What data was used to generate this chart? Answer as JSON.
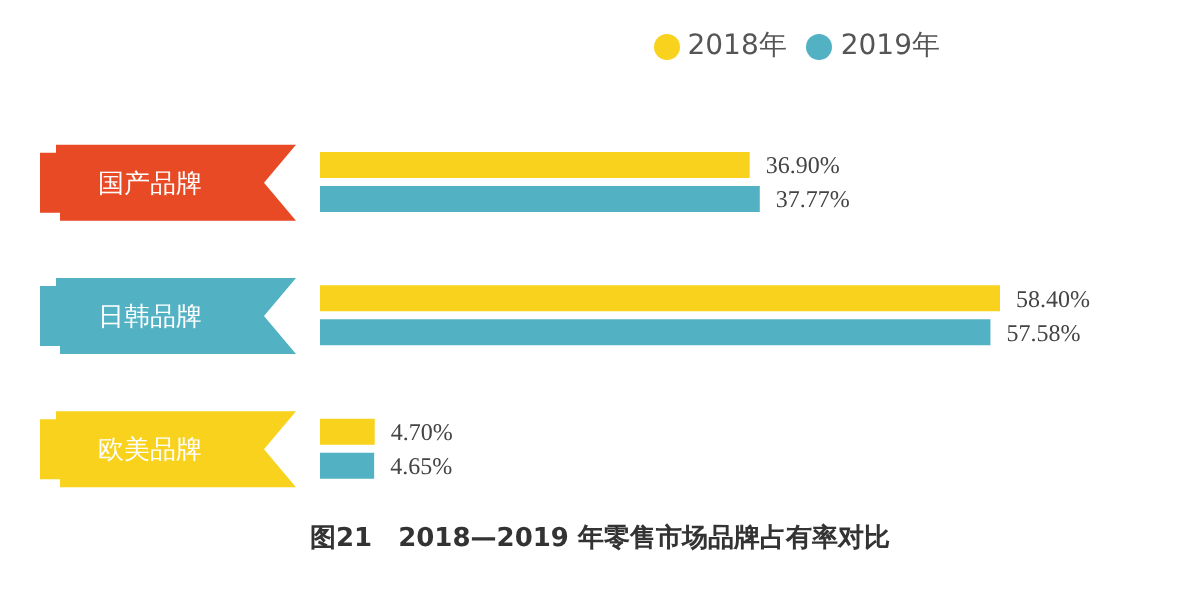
{
  "chart_data": {
    "type": "bar",
    "orientation": "horizontal",
    "title": "图21　2018—2019 年零售市场品牌占有率对比",
    "categories": [
      "国产品牌",
      "日韩品牌",
      "欧美品牌"
    ],
    "series": [
      {
        "name": "2018年",
        "color": "#f8d21c",
        "values": [
          36.9,
          58.4,
          4.7
        ],
        "value_labels": [
          "36.90%",
          "58.40%",
          "4.70%"
        ]
      },
      {
        "name": "2019年",
        "color": "#52b2c4",
        "values": [
          37.77,
          57.58,
          4.65
        ],
        "value_labels": [
          "37.77%",
          "57.58%",
          "4.65%"
        ]
      }
    ],
    "legend": "top right",
    "grid": false
  }
}
